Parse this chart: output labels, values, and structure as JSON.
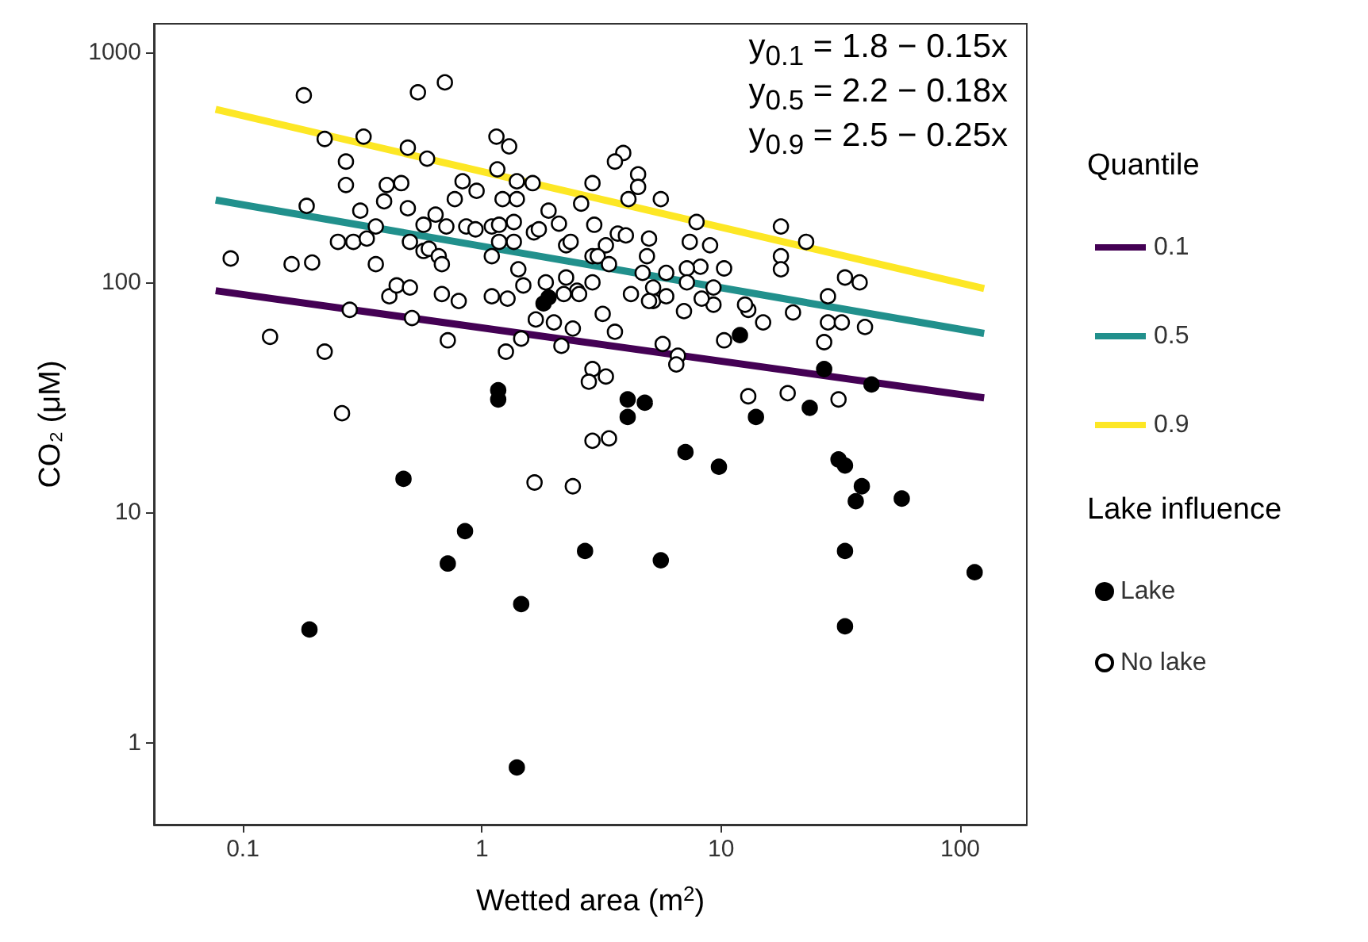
{
  "chart_data": {
    "type": "scatter",
    "xlabel": "Wetted area (m$^{2}$)",
    "ylabel": "CO₂ (μM)",
    "legend_title": [
      "Quantile",
      "Lake influence"
    ],
    "annotations": [
      "y$_{0.1}$ = 1.8 − 0.15x",
      "y$_{0.5}$ = 2.2 − 0.18x",
      "y$_{0.9}$ = 2.5 − 0.25x"
    ],
    "xlim": [
      0.0425,
      190
    ],
    "ylim": [
      0.44,
      1330
    ],
    "xticks": [
      0.1,
      1,
      10,
      100
    ],
    "yticks": [
      1,
      10,
      100,
      1000
    ],
    "log": "xy",
    "grid": false,
    "legend": "right",
    "series": [
      {
        "name": "0.1",
        "type": "line",
        "color": "#440154",
        "line_style": "solid",
        "x": [
          0.077,
          126
        ],
        "values": [
          92,
          31.5
        ]
      },
      {
        "name": "0.5",
        "type": "line",
        "color": "#21908c",
        "line_style": "solid",
        "x": [
          0.077,
          126
        ],
        "values": [
          228,
          60
        ]
      },
      {
        "name": "0.9",
        "type": "line",
        "color": "#fde725",
        "line_style": "solid",
        "x": [
          0.077,
          126
        ],
        "values": [
          565,
          94
        ]
      },
      {
        "name": "Lake",
        "marker": "circle",
        "color": "#000000",
        "x": [
          0.19,
          0.47,
          0.72,
          0.85,
          1.17,
          1.17,
          1.46,
          1.4,
          1.81,
          1.9,
          2.7,
          4.07,
          4.8,
          4.07,
          12,
          14,
          27,
          42.6,
          23.5,
          7.1,
          9.8,
          31,
          33,
          38.8,
          36.6,
          57,
          5.6,
          33,
          33,
          115
        ],
        "values": [
          3.1,
          14,
          6,
          8.3,
          34,
          31,
          4,
          0.78,
          81,
          86,
          6.8,
          31,
          30,
          26,
          59,
          26,
          42,
          36,
          28.5,
          18.3,
          15.8,
          17,
          16,
          13,
          11.2,
          11.5,
          6.2,
          6.8,
          3.2,
          5.5
        ]
      },
      {
        "name": "No lake",
        "marker": "circle",
        "color": "#ffffff",
        "x": [
          0.089,
          0.16,
          0.195,
          0.18,
          0.22,
          0.32,
          0.27,
          0.27,
          0.185,
          0.4,
          0.46,
          0.39,
          0.49,
          0.54,
          0.7,
          0.59,
          0.83,
          0.95,
          0.31,
          0.25,
          0.29,
          0.33,
          0.36,
          0.36,
          0.49,
          0.57,
          0.5,
          1.15,
          1.3,
          1.16,
          1.4,
          1.63,
          1.22,
          1.4,
          0.77,
          0.64,
          0.71,
          0.86,
          0.94,
          0.57,
          0.6,
          0.66,
          0.68,
          1.1,
          1.18,
          1.36,
          1.18,
          1.36,
          1.1,
          1.42,
          1.49,
          1.9,
          2.1,
          1.65,
          1.73,
          2.25,
          2.35,
          2.6,
          2.9,
          1.85,
          2.25,
          2.5,
          2.9,
          2.9,
          0.41,
          0.44,
          0.5,
          0.68,
          0.8,
          1.1,
          1.28,
          2.2,
          2.55,
          0.13,
          0.22,
          0.26,
          0.28,
          0.51,
          0.72,
          1.26,
          1.46,
          1.66,
          2.4,
          1.68,
          2.0,
          2.4,
          2.15,
          2.9,
          2.8,
          2.9,
          7,
          13,
          15,
          20,
          28,
          32,
          40,
          28,
          27,
          5.7,
          6.6,
          6.5,
          10.3,
          13,
          19,
          31,
          3.4,
          3.6,
          3.3,
          3.2,
          5.2,
          5.9,
          9.3,
          3.9,
          3.6,
          4.5,
          4.5,
          4.1,
          5.6,
          17.8,
          17.8,
          17.8,
          22.7,
          33,
          38,
          7.9,
          7.4,
          9,
          10.3,
          8.2,
          7.2,
          5.9,
          5,
          4.9,
          3.7,
          4,
          3.3,
          2.95,
          3.05,
          3.4,
          4.7,
          5.2,
          5,
          4.2,
          9.3,
          12.6,
          7.2,
          8.3
        ],
        "values": [
          127,
          120,
          122,
          650,
          420,
          430,
          335,
          265,
          215,
          265,
          270,
          225,
          385,
          670,
          740,
          345,
          275,
          250,
          205,
          150,
          150,
          155,
          120,
          175,
          210,
          178,
          150,
          430,
          390,
          310,
          275,
          270,
          230,
          230,
          230,
          197,
          175,
          175,
          170,
          137,
          140,
          130,
          120,
          175,
          178,
          183,
          150,
          150,
          130,
          114,
          97,
          205,
          180,
          165,
          170,
          145,
          150,
          220,
          270,
          100,
          105,
          92,
          130,
          100,
          87,
          97,
          95,
          89,
          83,
          87,
          85,
          89,
          89,
          58,
          50,
          27,
          76,
          70,
          56,
          50,
          57,
          13.5,
          13,
          69,
          67,
          63,
          53,
          42,
          37,
          20.5,
          75,
          76,
          67,
          74,
          67,
          67,
          64,
          87,
          55,
          54,
          48,
          44,
          56,
          32,
          33,
          31,
          21,
          61,
          39,
          73,
          83,
          87,
          80,
          365,
          335,
          295,
          260,
          230,
          230,
          175,
          130,
          114,
          150,
          105,
          100,
          183,
          150,
          145,
          115,
          117,
          115,
          110,
          155,
          130,
          163,
          160,
          145,
          178,
          130,
          120,
          110,
          95,
          83,
          89,
          95,
          80,
          100,
          85
        ]
      }
    ]
  }
}
